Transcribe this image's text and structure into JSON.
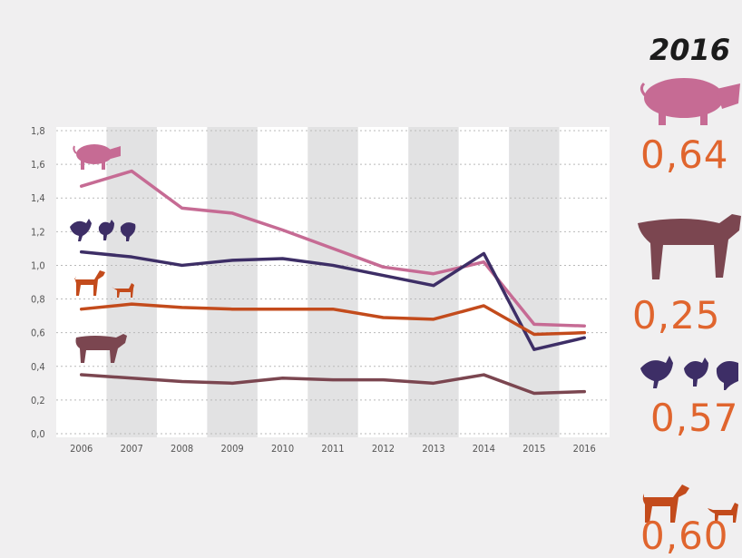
{
  "chart_data": {
    "type": "line",
    "categories": [
      "2006",
      "2007",
      "2008",
      "2009",
      "2010",
      "2011",
      "2012",
      "2013",
      "2014",
      "2015",
      "2016"
    ],
    "y_ticks": [
      "0,0",
      "0,2",
      "0,4",
      "0,6",
      "0,8",
      "1,0",
      "1,2",
      "1,4",
      "1,6",
      "1,8"
    ],
    "ylim": [
      0,
      1.8
    ],
    "grid": true,
    "series": [
      {
        "icon": "pig-icon",
        "color": "#c66b94",
        "values": [
          1.47,
          1.56,
          1.34,
          1.31,
          1.21,
          1.1,
          0.99,
          0.95,
          1.02,
          0.65,
          0.64
        ]
      },
      {
        "icon": "poultry-icon",
        "color": "#3d2e66",
        "values": [
          1.08,
          1.05,
          1.0,
          1.03,
          1.04,
          1.0,
          0.94,
          0.88,
          1.07,
          0.5,
          0.57
        ]
      },
      {
        "icon": "dog-cat-icon",
        "color": "#c34b1c",
        "values": [
          0.74,
          0.77,
          0.75,
          0.74,
          0.74,
          0.74,
          0.69,
          0.68,
          0.76,
          0.59,
          0.6
        ]
      },
      {
        "icon": "cow-icon",
        "color": "#7b4650",
        "values": [
          0.35,
          0.33,
          0.31,
          0.3,
          0.33,
          0.32,
          0.32,
          0.3,
          0.35,
          0.24,
          0.25
        ]
      }
    ]
  },
  "summary": {
    "year": "2016",
    "items": [
      {
        "icon": "pig-icon",
        "value": "0,64"
      },
      {
        "icon": "cow-icon",
        "value": "0,25"
      },
      {
        "icon": "poultry-icon",
        "value": "0,57"
      },
      {
        "icon": "dog-cat-icon",
        "value": "0,60"
      }
    ]
  },
  "colors": {
    "pig": "#c66b94",
    "poultry": "#3d2e66",
    "dogcat": "#c34b1c",
    "cow": "#7b4650",
    "accent": "#e0652e",
    "stripe": "#e2e2e3"
  }
}
